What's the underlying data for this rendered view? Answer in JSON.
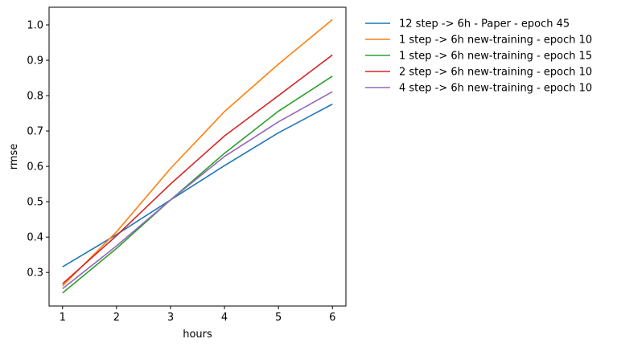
{
  "chart_data": {
    "type": "line",
    "xlabel": "hours",
    "ylabel": "rmse",
    "x": [
      1,
      2,
      3,
      4,
      5,
      6
    ],
    "xticks": [
      "1",
      "2",
      "3",
      "4",
      "5",
      "6"
    ],
    "yticks": [
      "0.3",
      "0.4",
      "0.5",
      "0.6",
      "0.7",
      "0.8",
      "0.9",
      "1.0"
    ],
    "xlim": [
      0.75,
      6.25
    ],
    "ylim": [
      0.205,
      1.05
    ],
    "grid": false,
    "legend": "outside-right",
    "series": [
      {
        "name": "12 step -> 6h - Paper - epoch 45",
        "color": "#1f77b4",
        "values": [
          0.316,
          0.407,
          0.505,
          0.602,
          0.695,
          0.776
        ]
      },
      {
        "name": "1 step -> 6h new-training - epoch 10",
        "color": "#ff7f0e",
        "values": [
          0.262,
          0.415,
          0.594,
          0.755,
          0.889,
          1.015
        ]
      },
      {
        "name": "1 step -> 6h new-training - epoch 15",
        "color": "#2ca02c",
        "values": [
          0.242,
          0.368,
          0.505,
          0.637,
          0.756,
          0.855
        ]
      },
      {
        "name": "2 step -> 6h new-training - epoch 10",
        "color": "#d62728",
        "values": [
          0.268,
          0.404,
          0.55,
          0.686,
          0.8,
          0.915
        ]
      },
      {
        "name": "4 step -> 6h new-training - epoch 10",
        "color": "#9467bd",
        "values": [
          0.254,
          0.375,
          0.505,
          0.628,
          0.726,
          0.811
        ]
      }
    ]
  }
}
